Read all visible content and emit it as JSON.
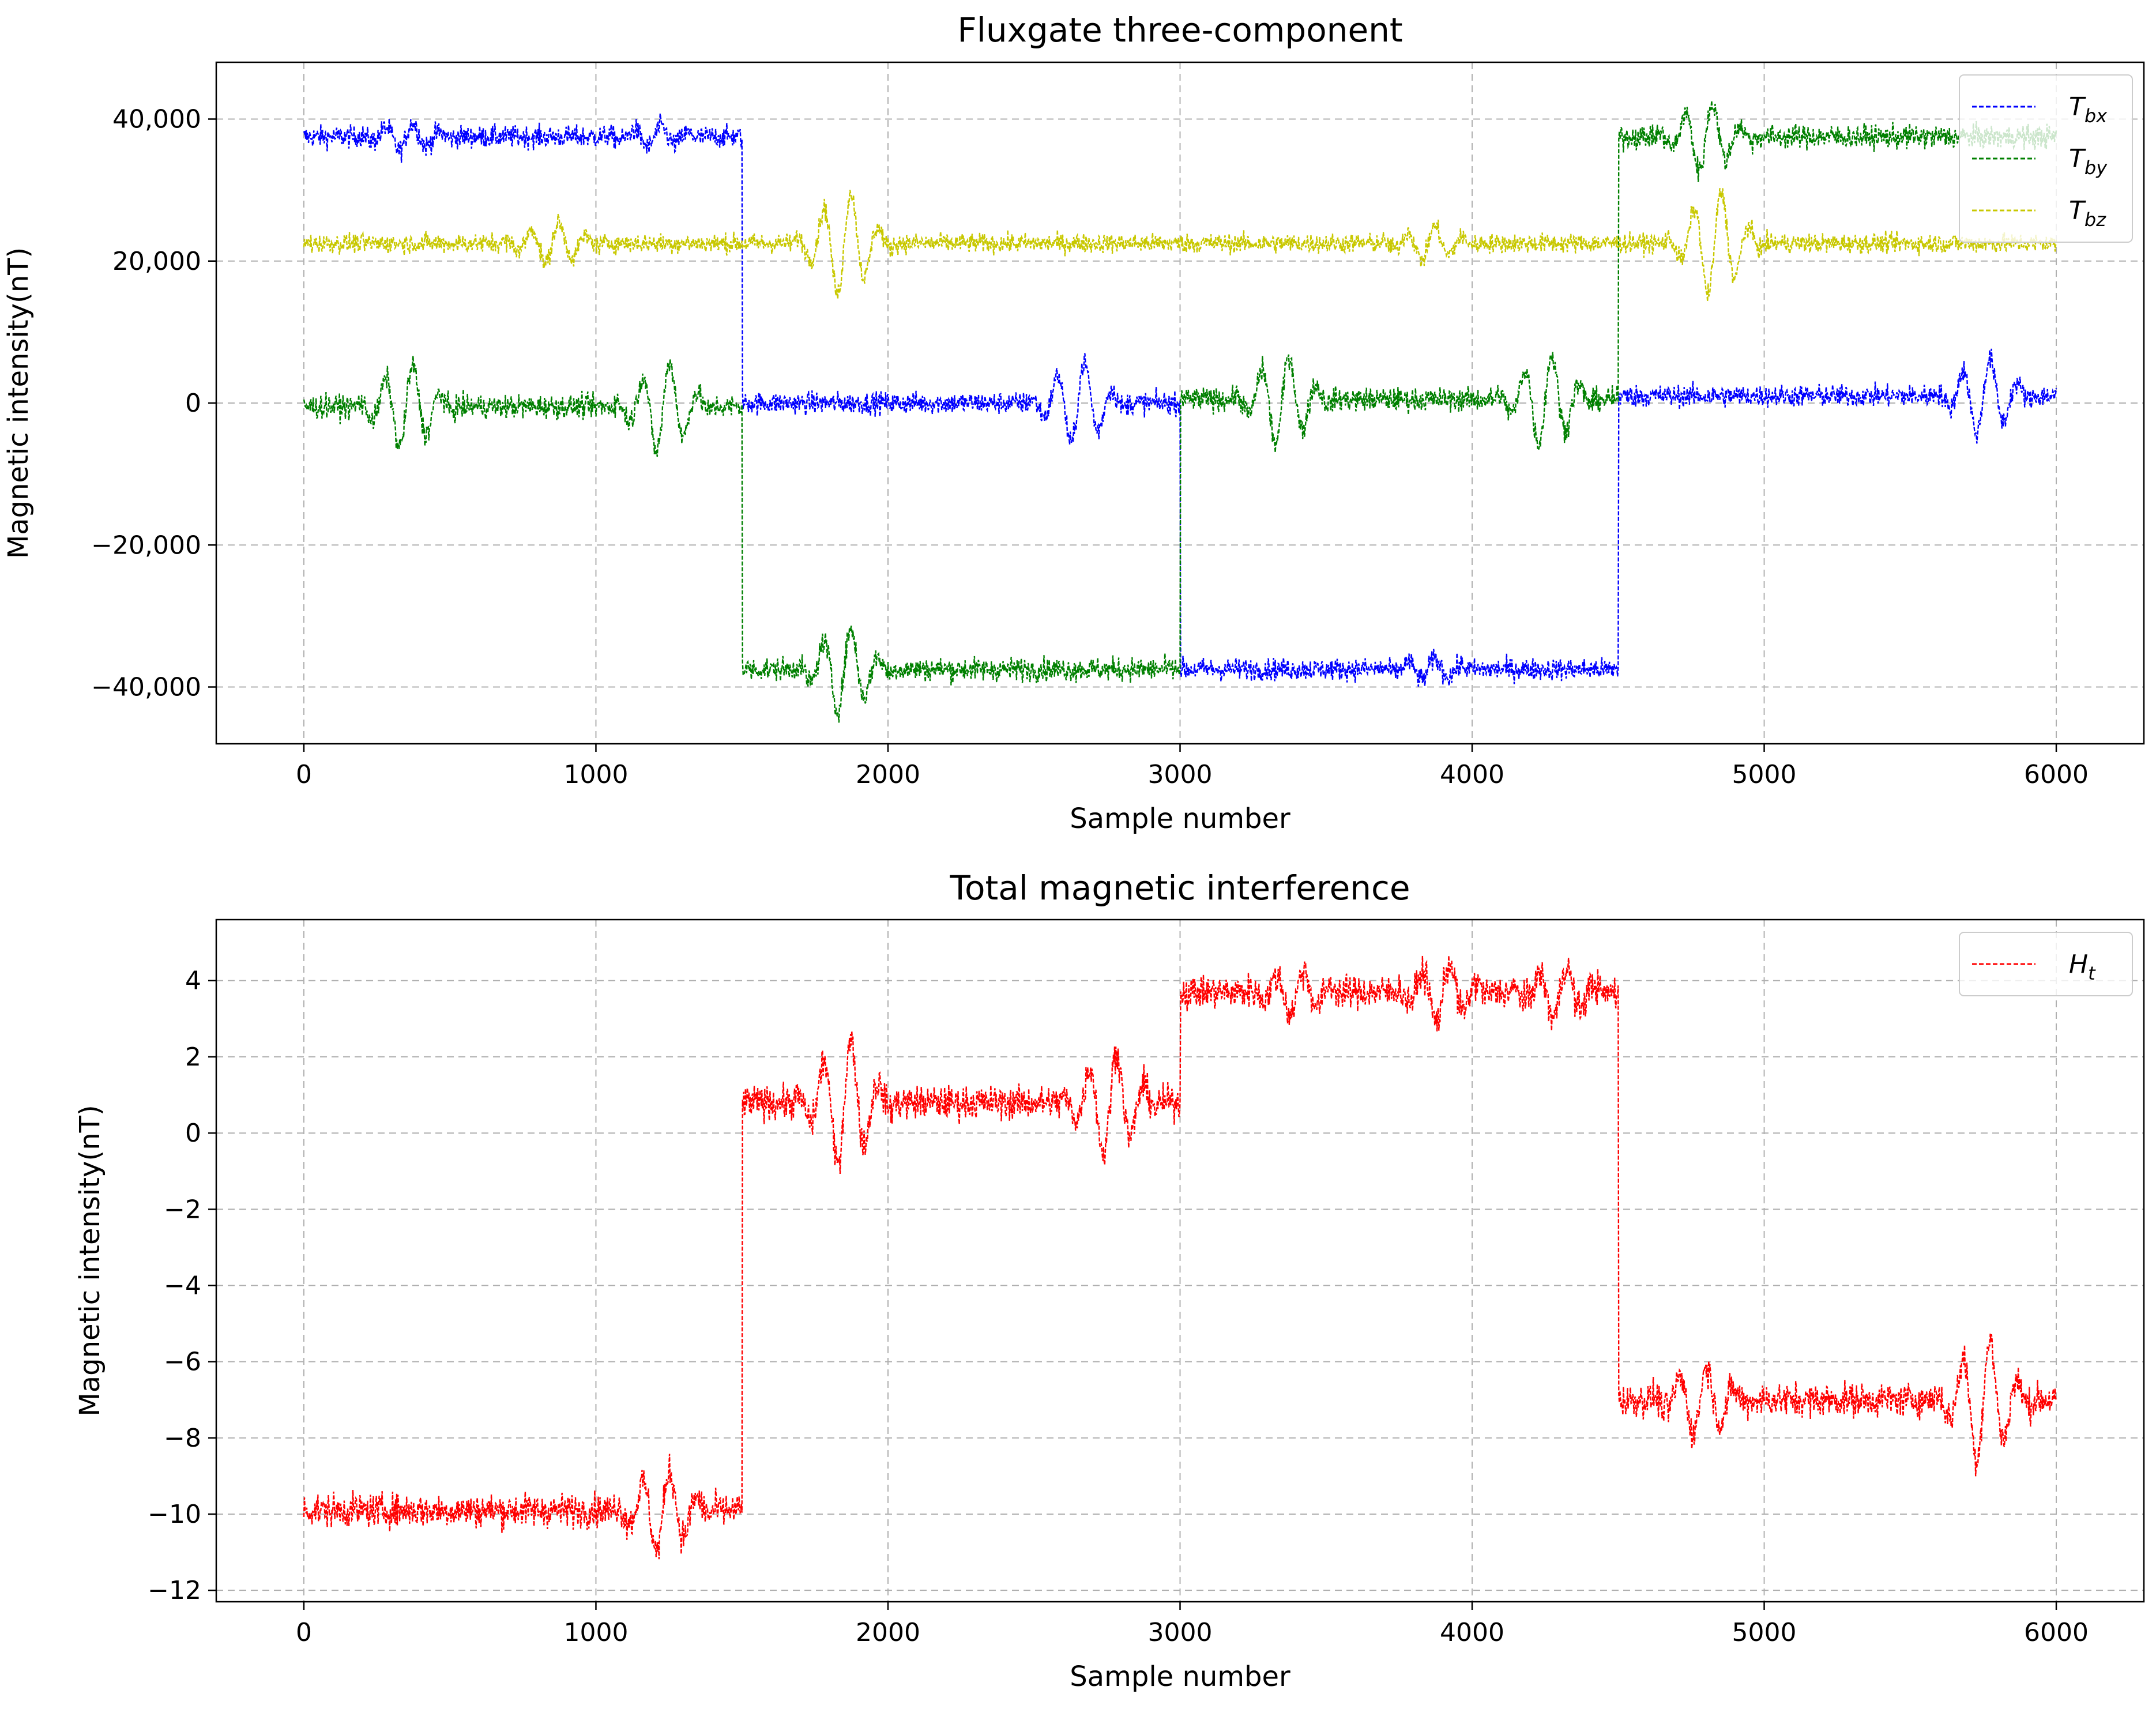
{
  "chart_data": [
    {
      "type": "line",
      "title": "Fluxgate three-component",
      "xlabel": "Sample number",
      "ylabel": "Magnetic intensity(nT)",
      "xlim": [
        -300,
        6300
      ],
      "ylim": [
        -48000,
        48000
      ],
      "xticks": [
        0,
        1000,
        2000,
        3000,
        4000,
        5000,
        6000
      ],
      "xtick_labels": [
        "0",
        "1000",
        "2000",
        "3000",
        "4000",
        "5000",
        "6000"
      ],
      "yticks": [
        40000,
        20000,
        0,
        -20000,
        -40000
      ],
      "ytick_labels": [
        "40,000",
        "20,000",
        "0",
        "−20,000",
        "−40,000"
      ],
      "grid": true,
      "line_style": "dashed",
      "legend_position": "top-right",
      "series": [
        {
          "name": "T_bx",
          "legend_main": "T",
          "legend_sub": "bx",
          "color": "#0000ff",
          "segments": [
            [
              0,
              1500,
              37500
            ],
            [
              1500,
              3000,
              0
            ],
            [
              3000,
              4500,
              -37500
            ],
            [
              4500,
              6000,
              1000
            ]
          ],
          "noise_amp": 1600,
          "bursts": [
            [
              350,
              2000
            ],
            [
              1200,
              1500
            ],
            [
              2650,
              6000
            ],
            [
              3850,
              1500
            ],
            [
              5750,
              5500
            ]
          ]
        },
        {
          "name": "T_by",
          "legend_main": "T",
          "legend_sub": "by",
          "color": "#008000",
          "segments": [
            [
              0,
              1500,
              -500
            ],
            [
              1500,
              3000,
              -37500
            ],
            [
              3000,
              4500,
              500
            ],
            [
              4500,
              6000,
              37500
            ]
          ],
          "noise_amp": 1700,
          "bursts": [
            [
              350,
              6000
            ],
            [
              1230,
              6500
            ],
            [
              1850,
              6000
            ],
            [
              3350,
              6500
            ],
            [
              4250,
              6500
            ],
            [
              4800,
              5000
            ]
          ]
        },
        {
          "name": "T_bz",
          "legend_main": "T",
          "legend_sub": "bz",
          "color": "#c8c800",
          "segments": [
            [
              0,
              6000,
              22500
            ]
          ],
          "noise_amp": 1400,
          "bursts": [
            [
              850,
              3000
            ],
            [
              1850,
              7500
            ],
            [
              3850,
              2500
            ],
            [
              4830,
              7500
            ]
          ]
        }
      ]
    },
    {
      "type": "line",
      "title": "Total magnetic interference",
      "xlabel": "Sample number",
      "ylabel": "Magnetic intensity(nT)",
      "xlim": [
        -300,
        6300
      ],
      "ylim": [
        -12.3,
        5.6
      ],
      "xticks": [
        0,
        1000,
        2000,
        3000,
        4000,
        5000,
        6000
      ],
      "xtick_labels": [
        "0",
        "1000",
        "2000",
        "3000",
        "4000",
        "5000",
        "6000"
      ],
      "yticks": [
        4,
        2,
        0,
        -2,
        -4,
        -6,
        -8,
        -10,
        -12
      ],
      "ytick_labels": [
        "4",
        "2",
        "0",
        "−2",
        "−4",
        "−6",
        "−8",
        "−10",
        "−12"
      ],
      "grid": true,
      "line_style": "dashed",
      "legend_position": "top-right",
      "series": [
        {
          "name": "H_t",
          "legend_main": "H",
          "legend_sub": "t",
          "color": "#ff0000",
          "segments": [
            [
              0,
              1500,
              -9.9
            ],
            [
              1500,
              3000,
              0.8
            ],
            [
              3000,
              4500,
              3.7
            ],
            [
              4500,
              6000,
              -7.0
            ]
          ],
          "noise_amp": 0.45,
          "bursts": [
            [
              1230,
              1.1
            ],
            [
              1850,
              1.7
            ],
            [
              2760,
              1.4
            ],
            [
              3400,
              0.6
            ],
            [
              3900,
              0.8
            ],
            [
              4300,
              0.7
            ],
            [
              4780,
              0.9
            ],
            [
              5750,
              1.6
            ]
          ]
        }
      ]
    }
  ]
}
